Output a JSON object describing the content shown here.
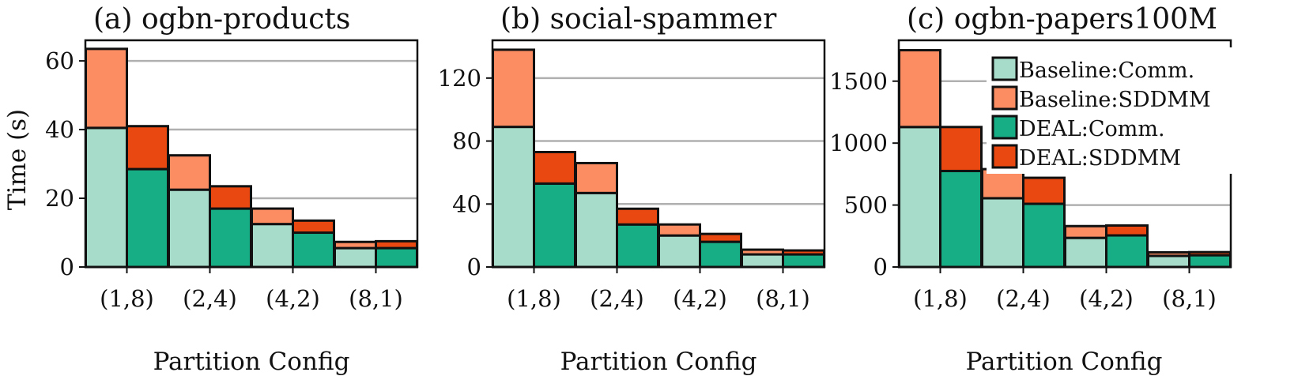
{
  "chart_data": [
    {
      "type": "bar",
      "stacked": true,
      "title": "(a) ogbn-products",
      "xlabel": "Partition Config",
      "ylabel": "Time (s)",
      "categories": [
        "(1,8)",
        "(2,4)",
        "(4,2)",
        "(8,1)"
      ],
      "ylim": [
        0,
        66
      ],
      "yticks": [
        0,
        20,
        40,
        60
      ],
      "grid": true,
      "series": [
        {
          "name": "Baseline:Comm.",
          "group": "Baseline",
          "values": [
            40.5,
            22.5,
            12.5,
            5.5
          ]
        },
        {
          "name": "Baseline:SDDMM",
          "group": "Baseline",
          "values": [
            23.0,
            10.0,
            4.5,
            1.8
          ]
        },
        {
          "name": "DEAL:Comm.",
          "group": "DEAL",
          "values": [
            28.5,
            17.0,
            10.0,
            5.5
          ]
        },
        {
          "name": "DEAL:SDDMM",
          "group": "DEAL",
          "values": [
            12.5,
            6.5,
            3.5,
            2.0
          ]
        }
      ]
    },
    {
      "type": "bar",
      "stacked": true,
      "title": "(b) social-spammer",
      "xlabel": "Partition Config",
      "ylabel": "",
      "categories": [
        "(1,8)",
        "(2,4)",
        "(4,2)",
        "(8,1)"
      ],
      "ylim": [
        0,
        144
      ],
      "yticks": [
        0,
        40,
        80,
        120
      ],
      "grid": true,
      "series": [
        {
          "name": "Baseline:Comm.",
          "group": "Baseline",
          "values": [
            89,
            47,
            20,
            8
          ]
        },
        {
          "name": "Baseline:SDDMM",
          "group": "Baseline",
          "values": [
            49,
            19,
            7,
            3
          ]
        },
        {
          "name": "DEAL:Comm.",
          "group": "DEAL",
          "values": [
            53,
            27,
            16,
            8
          ]
        },
        {
          "name": "DEAL:SDDMM",
          "group": "DEAL",
          "values": [
            20,
            10,
            5,
            2.5
          ]
        }
      ]
    },
    {
      "type": "bar",
      "stacked": true,
      "title": "(c) ogbn-papers100M",
      "xlabel": "Partition Config",
      "ylabel": "",
      "categories": [
        "(1,8)",
        "(2,4)",
        "(4,2)",
        "(8,1)"
      ],
      "ylim": [
        0,
        1830
      ],
      "yticks": [
        0,
        500,
        1000,
        1500
      ],
      "grid": true,
      "series": [
        {
          "name": "Baseline:Comm.",
          "group": "Baseline",
          "values": [
            1130,
            555,
            235,
            90
          ]
        },
        {
          "name": "Baseline:SDDMM",
          "group": "Baseline",
          "values": [
            620,
            235,
            95,
            28
          ]
        },
        {
          "name": "DEAL:Comm.",
          "group": "DEAL",
          "values": [
            775,
            510,
            255,
            95
          ]
        },
        {
          "name": "DEAL:SDDMM",
          "group": "DEAL",
          "values": [
            355,
            210,
            80,
            25
          ]
        }
      ]
    }
  ],
  "legend": {
    "placement": "top-right of panel (c)",
    "entries": [
      {
        "label": "Baseline:Comm.",
        "color": "#a6dcc9"
      },
      {
        "label": "Baseline:SDDMM",
        "color": "#fc8d62"
      },
      {
        "label": "DEAL:Comm.",
        "color": "#17ad85"
      },
      {
        "label": "DEAL:SDDMM",
        "color": "#ea4811"
      }
    ]
  },
  "colors": {
    "baseline_comm": "#a6dcc9",
    "baseline_sddmm": "#fc8d62",
    "deal_comm": "#17ad85",
    "deal_sddmm": "#ea4811"
  }
}
